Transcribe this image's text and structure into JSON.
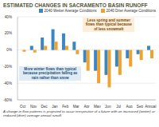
{
  "chart_data": {
    "type": "bar",
    "title": "ESTIMATED CHANGES IN SACRAMENTO BASIN RUNOFF",
    "categories": [
      "Oct",
      "Nov",
      "Dec",
      "Jan",
      "Feb",
      "Mar",
      "Apr",
      "May",
      "Jun",
      "Jul",
      "Aug",
      "Sep",
      "Annual"
    ],
    "series": [
      {
        "name": "2040 Wetter Average Conditions",
        "color": "#3b87c4",
        "values": [
          0,
          5,
          15,
          25,
          20,
          10,
          -15,
          -25,
          -30,
          -20,
          -10,
          -5,
          5
        ]
      },
      {
        "name": "2040 Drier Average Conditions",
        "color": "#f0a22e",
        "values": [
          -2,
          -3,
          5,
          10,
          5,
          -5,
          -25,
          -40,
          -45,
          -30,
          -20,
          -12,
          -10
        ]
      }
    ],
    "ylim": [
      -60,
      40
    ],
    "yticks": [
      {
        "value": -60,
        "label": "-60%"
      },
      {
        "value": -40,
        "label": "-40%"
      },
      {
        "value": -20,
        "label": "-20%"
      },
      {
        "value": 0,
        "label": "0%"
      },
      {
        "value": 20,
        "label": "20%"
      },
      {
        "value": 40,
        "label": "40%"
      }
    ],
    "grid": true,
    "annotations": [
      "Less spring and summer flows than typical because of less snowmelt",
      "More winter flows than typical because precipitation falling as rain rather than snow"
    ],
    "caption": "A change in flow patterns is projected to occur irrespective of a future with an increased (wetter) or reduced (drier) average annual runoff."
  }
}
